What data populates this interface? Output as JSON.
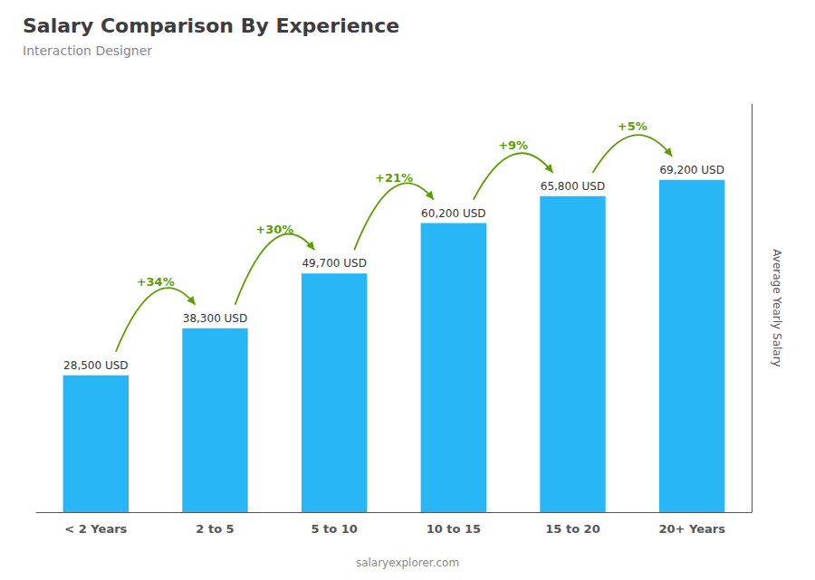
{
  "chart_data": {
    "type": "bar",
    "title": "Salary Comparison By Experience",
    "subtitle": "Interaction Designer",
    "categories": [
      "< 2 Years",
      "2 to 5",
      "5 to 10",
      "10 to 15",
      "15 to 20",
      "20+ Years"
    ],
    "values": [
      28500,
      38300,
      49700,
      60200,
      65800,
      69200
    ],
    "value_labels": [
      "28,500 USD",
      "38,300 USD",
      "49,700 USD",
      "60,200 USD",
      "65,800 USD",
      "69,200 USD"
    ],
    "data_labels": true,
    "annotations": [
      "+34%",
      "+30%",
      "+21%",
      "+9%",
      "+5%"
    ],
    "ylabel": "Average Yearly Salary",
    "footer": "salaryexplorer.com",
    "color": "#29b6f6",
    "ylim": [
      0,
      85000
    ],
    "grid": false,
    "tick_labels": "x"
  }
}
